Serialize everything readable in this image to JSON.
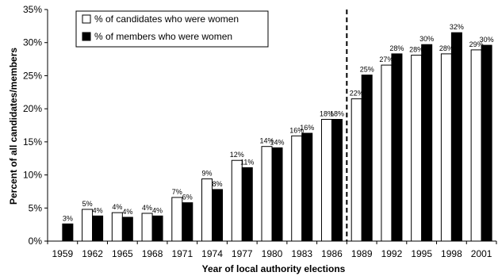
{
  "chart_data": {
    "type": "bar",
    "title": "",
    "xlabel": "Year of local authority elections",
    "ylabel": "Percent of all candidates/members",
    "categories": [
      "1959",
      "1962",
      "1965",
      "1968",
      "1971",
      "1974",
      "1977",
      "1980",
      "1983",
      "1986",
      "1989",
      "1992",
      "1995",
      "1998",
      "2001"
    ],
    "series": [
      {
        "name": "% of candidates who were women",
        "fill": "#ffffff",
        "values": [
          null,
          4.8,
          4.3,
          4.2,
          6.6,
          9.4,
          12.2,
          14.3,
          15.9,
          18.4,
          21.5,
          26.6,
          28.1,
          28.3,
          28.9
        ],
        "labels": [
          "",
          "5%",
          "4%",
          "4%",
          "7%",
          "9%",
          "12%",
          "14%",
          "16%",
          "18%",
          "22%",
          "27%",
          "28%",
          "28%",
          "29%"
        ]
      },
      {
        "name": "% of members who were women",
        "fill": "#000000",
        "values": [
          2.6,
          3.8,
          3.6,
          3.8,
          5.8,
          7.8,
          11.1,
          14.1,
          16.3,
          18.4,
          25.1,
          28.3,
          29.7,
          31.5,
          29.6
        ],
        "labels": [
          "3%",
          "4%",
          "4%",
          "4%",
          "6%",
          "8%",
          "11%",
          "14%",
          "16%",
          "18%",
          "25%",
          "28%",
          "30%",
          "32%",
          "30%"
        ]
      }
    ],
    "ylim": [
      0,
      35
    ],
    "yticks": [
      "0%",
      "5%",
      "10%",
      "15%",
      "20%",
      "25%",
      "30%",
      "35%"
    ],
    "ytick_values": [
      0,
      5,
      10,
      15,
      20,
      25,
      30,
      35
    ],
    "grid": false,
    "legend": "top-left",
    "annotations": [
      {
        "type": "dashed-vertical-line",
        "between": [
          "1986",
          "1989"
        ]
      }
    ]
  }
}
